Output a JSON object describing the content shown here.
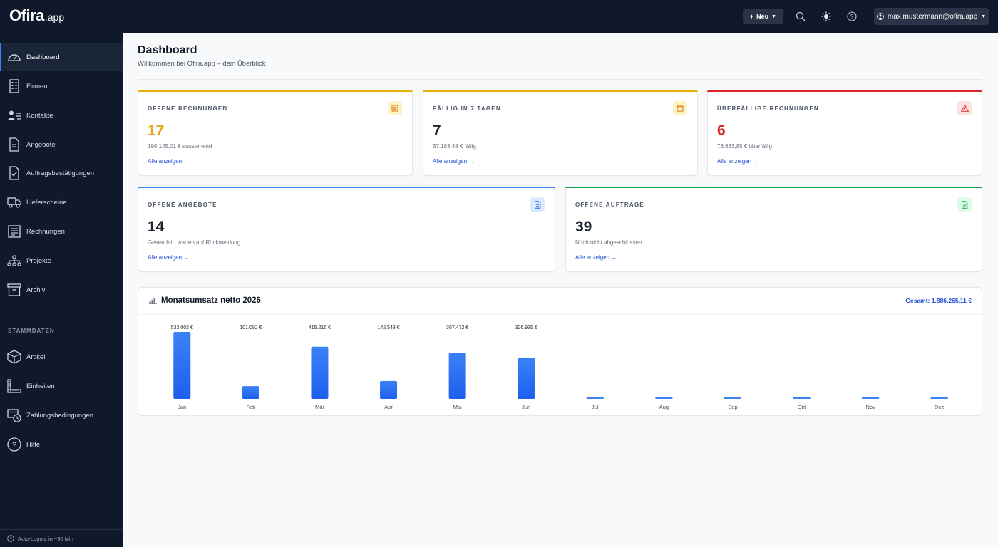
{
  "app": {
    "logo_main": "Ofira",
    "logo_sub": ".app"
  },
  "topbar": {
    "new_label": "Neu",
    "user_email": "max.mustermann@ofira.app"
  },
  "sidebar": {
    "items": [
      {
        "label": "Dashboard",
        "icon": "gauge-icon",
        "active": true
      },
      {
        "label": "Firmen",
        "icon": "building-icon"
      },
      {
        "label": "Kontakte",
        "icon": "users-icon"
      },
      {
        "label": "Angebote",
        "icon": "document-icon"
      },
      {
        "label": "Auftragsbestätigungen",
        "icon": "document-check-icon"
      },
      {
        "label": "Lieferscheine",
        "icon": "truck-icon"
      },
      {
        "label": "Rechnungen",
        "icon": "receipt-icon"
      },
      {
        "label": "Projekte",
        "icon": "sitemap-icon"
      },
      {
        "label": "Archiv",
        "icon": "archive-icon"
      }
    ],
    "section_label": "STAMMDATEN",
    "master_items": [
      {
        "label": "Artikel",
        "icon": "box-icon"
      },
      {
        "label": "Einheiten",
        "icon": "ruler-icon"
      },
      {
        "label": "Zahlungsbedingungen",
        "icon": "payment-terms-icon"
      },
      {
        "label": "Hilfe",
        "icon": "help-icon"
      }
    ],
    "footer": "Auto-Logout in ~30 Min"
  },
  "page": {
    "title": "Dashboard",
    "subtitle": "Willkommen bei Ofira.app – dein Überblick"
  },
  "cards": [
    {
      "label": "OFFENE RECHNUNGEN",
      "value": "17",
      "desc": "198.145,01 € ausstehend",
      "link": "Alle anzeigen →",
      "accent": "#eab308",
      "value_color": "#e8a317",
      "icon": "invoice-icon",
      "icon_bg": "#fef3c7",
      "icon_color": "#d97706"
    },
    {
      "label": "FÄLLIG IN 7 TAGEN",
      "value": "7",
      "desc": "37.183,48 € fällig",
      "link": "Alle anzeigen →",
      "accent": "#eab308",
      "value_color": "#1e2330",
      "icon": "calendar-icon",
      "icon_bg": "#fef3c7",
      "icon_color": "#d97706"
    },
    {
      "label": "ÜBERFÄLLIGE RECHNUNGEN",
      "value": "6",
      "desc": "76.633,85 € überfällig",
      "link": "Alle anzeigen →",
      "accent": "#dc2626",
      "value_color": "#dc2626",
      "icon": "warning-icon",
      "icon_bg": "#fee2e2",
      "icon_color": "#dc2626"
    },
    {
      "label": "OFFENE ANGEBOTE",
      "value": "14",
      "desc": "Gesendet · warten auf Rückmeldung",
      "link": "Alle anzeigen →",
      "accent": "#3b82f6",
      "value_color": "#1e2330",
      "icon": "document-icon",
      "icon_bg": "#dbeafe",
      "icon_color": "#2563eb"
    },
    {
      "label": "OFFENE AUFTRÄGE",
      "value": "39",
      "desc": "Noch nicht abgeschlossen",
      "link": "Alle anzeigen →",
      "accent": "#16a34a",
      "value_color": "#1e2330",
      "icon": "document-check-icon",
      "icon_bg": "#dcfce7",
      "icon_color": "#16a34a"
    }
  ],
  "chart": {
    "title": "Monatsumsatz netto 2026",
    "total": "Gesamt: 1.886.265,11 €"
  },
  "chart_data": {
    "type": "bar",
    "title": "Monatsumsatz netto 2026",
    "categories": [
      "Jan",
      "Feb",
      "Mär",
      "Apr",
      "Mai",
      "Jun",
      "Jul",
      "Aug",
      "Sep",
      "Okt",
      "Nov",
      "Dez"
    ],
    "values": [
      533002,
      101092,
      415216,
      142548,
      367472,
      326935,
      0,
      0,
      0,
      0,
      0,
      0
    ],
    "value_labels": [
      "533.002 €",
      "101.092 €",
      "415.216 €",
      "142.548 €",
      "367.472 €",
      "326.935 €",
      "",
      "",
      "",
      "",
      "",
      ""
    ],
    "ylim": [
      0,
      533002
    ],
    "grid": false,
    "color": "#3b82f6"
  }
}
